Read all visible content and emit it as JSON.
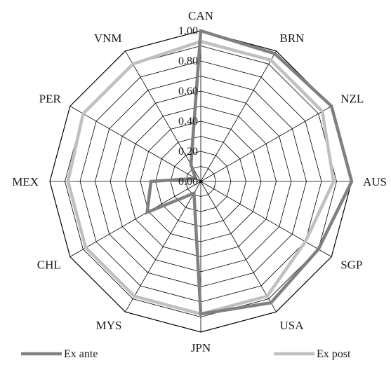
{
  "chart_data": {
    "type": "radar",
    "categories": [
      "CAN",
      "BRN",
      "NZL",
      "AUS",
      "SGP",
      "USA",
      "JPN",
      "MYS",
      "CHL",
      "MEX",
      "PER",
      "VNM"
    ],
    "series": [
      {
        "name": "Ex ante",
        "color": "#808080",
        "values": [
          1.0,
          0.98,
          1.0,
          1.0,
          0.9,
          0.93,
          0.88,
          0.09,
          0.41,
          0.33,
          0.04,
          0.13
        ]
      },
      {
        "name": "Ex post",
        "color": "#c0c0c0",
        "values": [
          0.93,
          0.93,
          0.93,
          0.88,
          0.8,
          0.88,
          0.88,
          0.88,
          0.88,
          0.88,
          0.9,
          0.9
        ]
      }
    ],
    "rlim": [
      0,
      1.0
    ],
    "ticks": [
      "0.00",
      "0.20",
      "0.40",
      "0.60",
      "0.80",
      "1.00"
    ],
    "tick_values": [
      0,
      0.2,
      0.4,
      0.6,
      0.8,
      1.0
    ],
    "grid": true,
    "legend": "bottom"
  }
}
